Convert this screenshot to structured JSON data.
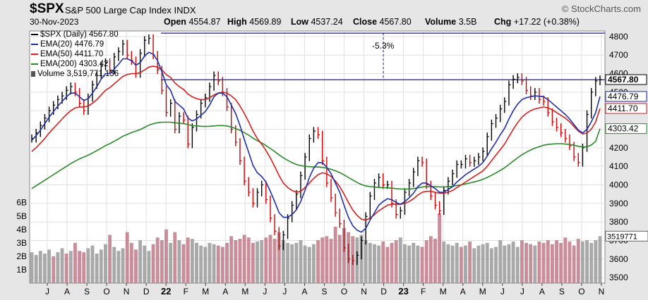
{
  "header": {
    "symbol": "$SPX",
    "name": "S&P 500 Large Cap Index",
    "exchange": "INDX",
    "date": "30-Nov-2023",
    "brand": "© StockCharts.com",
    "open_label": "Open",
    "open_value": "4554.87",
    "high_label": "High",
    "high_value": "4569.89",
    "low_label": "Low",
    "low_value": "4537.24",
    "close_label": "Close",
    "close_value": "4567.80",
    "volume_label": "Volume",
    "volume_value": "3.5B",
    "chg_label": "Chg",
    "chg_value": "+17.22 (+0.38%)"
  },
  "legend": [
    {
      "label": "$SPX (Daily) 4567.80",
      "color": "#000000"
    },
    {
      "label": "EMA(20) 4476.79",
      "color": "#1f2fa8"
    },
    {
      "label": "EMA(50) 4411.70",
      "color": "#d42020"
    },
    {
      "label": "EMA(200) 4303.42",
      "color": "#2a8a2a"
    },
    {
      "label": "Volume 3,519,771,136",
      "color": "#000000"
    }
  ],
  "colors": {
    "price": "#000000",
    "down": "#d00000",
    "ema20": "#1f2fa8",
    "ema50": "#d42020",
    "ema200": "#2a8a2a",
    "volume_up": "#9a9a9a",
    "volume_down": "#c07a88",
    "hline": "#1a1aa0",
    "plot_bg": "#ffffff",
    "frame_bg": "#e6e6e6"
  },
  "chart_data": {
    "type": "line",
    "title": "$SPX S&P 500 Large Cap Index",
    "x_ticks": [
      "J",
      "A",
      "S",
      "O",
      "N",
      "D",
      "22",
      "F",
      "M",
      "A",
      "M",
      "J",
      "J",
      "A",
      "S",
      "O",
      "N",
      "D",
      "23",
      "F",
      "M",
      "A",
      "M",
      "J",
      "J",
      "A",
      "S",
      "O",
      "N"
    ],
    "y_ticks": [
      3500,
      3600,
      3700,
      3800,
      3900,
      4000,
      4100,
      4200,
      4300,
      4400,
      4500,
      4600,
      4700,
      4800
    ],
    "ylim": [
      3470,
      4830
    ],
    "volume_ticks": [
      "1B",
      "2B",
      "3B",
      "4B",
      "5B",
      "6B"
    ],
    "volume_ylim": [
      0,
      6.3
    ],
    "close": [
      4250,
      4280,
      4320,
      4360,
      4400,
      4430,
      4460,
      4480,
      4510,
      4530,
      4500,
      4440,
      4400,
      4470,
      4540,
      4590,
      4640,
      4660,
      4620,
      4690,
      4720,
      4760,
      4700,
      4670,
      4600,
      4710,
      4780,
      4790,
      4700,
      4620,
      4510,
      4390,
      4440,
      4300,
      4370,
      4350,
      4220,
      4310,
      4380,
      4440,
      4470,
      4530,
      4590,
      4560,
      4500,
      4420,
      4300,
      4230,
      4130,
      4020,
      3960,
      3900,
      3960,
      4000,
      3920,
      3820,
      3750,
      3670,
      3730,
      3820,
      3890,
      3950,
      4050,
      4150,
      4250,
      4290,
      4270,
      4130,
      4010,
      3930,
      3850,
      3790,
      3660,
      3600,
      3590,
      3620,
      3700,
      3830,
      3940,
      4010,
      4040,
      4000,
      4000,
      3900,
      3840,
      3860,
      3960,
      4010,
      4070,
      4130,
      4120,
      4000,
      3940,
      3890,
      3860,
      3970,
      4020,
      4060,
      4110,
      4110,
      4140,
      4120,
      4130,
      4150,
      4180,
      4260,
      4330,
      4360,
      4410,
      4450,
      4540,
      4570,
      4580,
      4560,
      4510,
      4480,
      4500,
      4460,
      4450,
      4390,
      4340,
      4310,
      4280,
      4250,
      4210,
      4150,
      4120,
      4200,
      4380,
      4500,
      4560,
      4568
    ],
    "ema20": [
      4240,
      4265,
      4295,
      4330,
      4365,
      4395,
      4425,
      4450,
      4475,
      4495,
      4495,
      4475,
      4455,
      4465,
      4495,
      4530,
      4570,
      4600,
      4600,
      4625,
      4650,
      4680,
      4680,
      4670,
      4645,
      4660,
      4695,
      4715,
      4705,
      4670,
      4610,
      4540,
      4510,
      4450,
      4430,
      4410,
      4360,
      4345,
      4355,
      4375,
      4395,
      4430,
      4475,
      4495,
      4495,
      4475,
      4430,
      4385,
      4320,
      4245,
      4175,
      4105,
      4065,
      4045,
      4015,
      3965,
      3910,
      3850,
      3825,
      3825,
      3840,
      3865,
      3910,
      3970,
      4040,
      4090,
      4120,
      4120,
      4095,
      4060,
      4010,
      3960,
      3890,
      3825,
      3780,
      3755,
      3745,
      3765,
      3810,
      3850,
      3890,
      3910,
      3925,
      3920,
      3905,
      3895,
      3910,
      3930,
      3955,
      3990,
      4010,
      4010,
      3995,
      3980,
      3960,
      3960,
      3975,
      3990,
      4015,
      4035,
      4055,
      4070,
      4085,
      4100,
      4120,
      4155,
      4195,
      4230,
      4270,
      4305,
      4355,
      4400,
      4435,
      4460,
      4470,
      4475,
      4480,
      4478,
      4475,
      4460,
      4440,
      4420,
      4400,
      4380,
      4355,
      4325,
      4295,
      4280,
      4300,
      4340,
      4390,
      4477
    ],
    "ema50": [
      4180,
      4200,
      4225,
      4250,
      4280,
      4305,
      4330,
      4355,
      4380,
      4400,
      4415,
      4420,
      4420,
      4425,
      4440,
      4460,
      4485,
      4510,
      4525,
      4545,
      4565,
      4585,
      4595,
      4600,
      4600,
      4605,
      4620,
      4635,
      4640,
      4635,
      4620,
      4595,
      4580,
      4550,
      4530,
      4515,
      4490,
      4475,
      4465,
      4460,
      4460,
      4470,
      4485,
      4495,
      4500,
      4495,
      4480,
      4460,
      4425,
      4385,
      4340,
      4290,
      4250,
      4220,
      4185,
      4145,
      4100,
      4050,
      4010,
      3985,
      3970,
      3960,
      3965,
      3985,
      4010,
      4035,
      4055,
      4065,
      4060,
      4045,
      4020,
      3990,
      3950,
      3905,
      3865,
      3835,
      3815,
      3810,
      3820,
      3840,
      3860,
      3875,
      3890,
      3895,
      3895,
      3895,
      3900,
      3910,
      3925,
      3945,
      3960,
      3965,
      3965,
      3960,
      3955,
      3955,
      3960,
      3970,
      3985,
      4000,
      4015,
      4030,
      4045,
      4060,
      4075,
      4100,
      4130,
      4160,
      4190,
      4220,
      4260,
      4300,
      4335,
      4365,
      4385,
      4400,
      4410,
      4415,
      4420,
      4415,
      4405,
      4390,
      4375,
      4360,
      4340,
      4315,
      4290,
      4275,
      4280,
      4300,
      4340,
      4412
    ],
    "ema200": [
      3980,
      3995,
      4010,
      4025,
      4040,
      4055,
      4070,
      4085,
      4100,
      4115,
      4128,
      4140,
      4150,
      4160,
      4172,
      4185,
      4198,
      4212,
      4222,
      4235,
      4248,
      4262,
      4272,
      4282,
      4290,
      4298,
      4310,
      4322,
      4330,
      4335,
      4338,
      4338,
      4338,
      4335,
      4332,
      4330,
      4325,
      4320,
      4318,
      4316,
      4315,
      4316,
      4318,
      4320,
      4320,
      4318,
      4312,
      4304,
      4294,
      4282,
      4268,
      4252,
      4238,
      4226,
      4212,
      4196,
      4180,
      4162,
      4146,
      4132,
      4120,
      4110,
      4104,
      4100,
      4098,
      4097,
      4096,
      4094,
      4090,
      4084,
      4076,
      4066,
      4054,
      4040,
      4026,
      4013,
      4002,
      3994,
      3990,
      3988,
      3986,
      3985,
      3984,
      3982,
      3980,
      3978,
      3977,
      3978,
      3980,
      3984,
      3988,
      3990,
      3990,
      3990,
      3989,
      3989,
      3990,
      3992,
      3996,
      4000,
      4005,
      4010,
      4016,
      4022,
      4030,
      4040,
      4052,
      4064,
      4078,
      4092,
      4110,
      4128,
      4146,
      4162,
      4176,
      4188,
      4198,
      4206,
      4214,
      4218,
      4220,
      4222,
      4222,
      4220,
      4218,
      4214,
      4208,
      4204,
      4206,
      4215,
      4235,
      4303
    ],
    "volume": [
      2.3,
      2.1,
      2.4,
      2.2,
      2.5,
      2.0,
      2.3,
      2.6,
      2.2,
      2.4,
      3.0,
      2.4,
      2.3,
      2.6,
      2.8,
      2.2,
      2.5,
      2.9,
      3.6,
      2.7,
      2.4,
      2.6,
      3.8,
      3.0,
      2.5,
      3.2,
      2.8,
      2.4,
      2.9,
      3.4,
      3.2,
      4.0,
      3.0,
      3.8,
      3.2,
      2.9,
      3.4,
      3.3,
      3.0,
      2.8,
      2.7,
      3.0,
      2.9,
      2.8,
      2.7,
      3.0,
      3.5,
      3.2,
      3.3,
      3.6,
      3.4,
      3.0,
      3.1,
      3.2,
      3.4,
      3.6,
      3.3,
      3.8,
      3.2,
      3.0,
      2.9,
      3.0,
      3.2,
      2.8,
      2.7,
      2.9,
      3.2,
      3.4,
      3.5,
      3.3,
      4.2,
      3.6,
      4.1,
      3.8,
      3.5,
      3.4,
      3.6,
      3.2,
      3.0,
      2.9,
      2.8,
      3.1,
      2.7,
      3.0,
      3.2,
      3.4,
      2.9,
      2.8,
      3.0,
      2.8,
      2.7,
      3.2,
      3.5,
      3.3,
      5.2,
      3.1,
      2.9,
      2.8,
      3.0,
      2.7,
      2.8,
      3.1,
      2.6,
      2.8,
      2.9,
      3.0,
      2.6,
      2.7,
      3.2,
      2.8,
      2.9,
      3.1,
      2.7,
      3.2,
      3.0,
      2.9,
      2.8,
      3.1,
      3.0,
      3.2,
      2.9,
      3.2,
      3.0,
      3.4,
      3.1,
      2.8,
      3.3,
      3.1,
      3.2,
      3.0,
      3.2,
      3.5
    ],
    "volume_up": [
      1,
      1,
      1,
      1,
      1,
      0,
      1,
      1,
      0,
      1,
      0,
      0,
      0,
      1,
      1,
      1,
      1,
      1,
      0,
      1,
      1,
      1,
      0,
      0,
      0,
      1,
      1,
      1,
      0,
      0,
      0,
      0,
      1,
      0,
      1,
      0,
      0,
      1,
      1,
      1,
      1,
      1,
      1,
      0,
      0,
      0,
      0,
      0,
      0,
      0,
      0,
      0,
      1,
      1,
      0,
      0,
      0,
      0,
      1,
      1,
      1,
      1,
      1,
      1,
      1,
      1,
      0,
      0,
      0,
      0,
      0,
      0,
      0,
      0,
      0,
      1,
      1,
      1,
      1,
      1,
      1,
      0,
      0,
      0,
      0,
      1,
      1,
      1,
      1,
      1,
      0,
      0,
      0,
      0,
      0,
      1,
      1,
      1,
      1,
      0,
      1,
      0,
      1,
      1,
      1,
      1,
      1,
      1,
      1,
      1,
      1,
      1,
      1,
      0,
      0,
      0,
      1,
      0,
      0,
      0,
      0,
      0,
      0,
      0,
      0,
      0,
      0,
      1,
      1,
      1,
      1,
      1
    ],
    "annotation_text": "-5.3%",
    "peak_level": 4818,
    "retrace_level": 4567,
    "last_labels": [
      {
        "text": "4567.80",
        "value": 4567.8,
        "bold": true
      },
      {
        "text": "4476.79",
        "value": 4476.79,
        "bold": false
      },
      {
        "text": "4411.70",
        "value": 4411.7,
        "bold": false
      },
      {
        "text": "4303.42",
        "value": 4303.42,
        "bold": false
      }
    ],
    "volume_last_label": "3519771"
  }
}
